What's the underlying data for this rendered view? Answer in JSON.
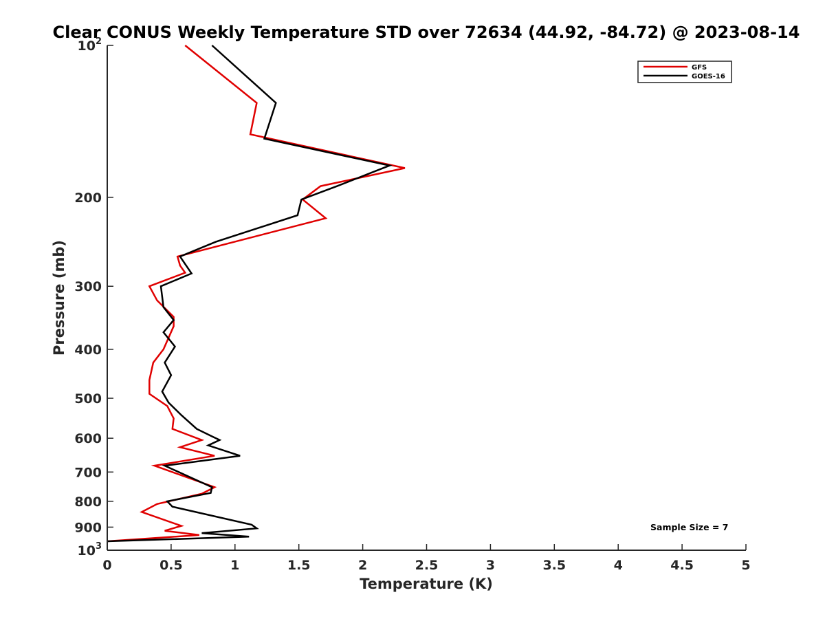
{
  "chart_data": {
    "type": "line",
    "title": "Clear CONUS Weekly Temperature STD over 72634 (44.92, -84.72) @ 2023-08-14",
    "xlabel": "Temperature (K)",
    "ylabel": "Pressure (mb)",
    "xlim": [
      0,
      5
    ],
    "ylim": [
      100,
      1000
    ],
    "y_scale": "log",
    "y_reversed": true,
    "x_ticks": [
      "0",
      "0.5",
      "1",
      "1.5",
      "2",
      "2.5",
      "3",
      "3.5",
      "4",
      "4.5",
      "5"
    ],
    "x_tick_values": [
      0,
      0.5,
      1,
      1.5,
      2,
      2.5,
      3,
      3.5,
      4,
      4.5,
      5
    ],
    "y_ticks": [
      {
        "value": 100,
        "base": "10",
        "exp": "2"
      },
      {
        "value": 200,
        "label": "200"
      },
      {
        "value": 300,
        "label": "300"
      },
      {
        "value": 400,
        "label": "400"
      },
      {
        "value": 500,
        "label": "500"
      },
      {
        "value": 600,
        "label": "600"
      },
      {
        "value": 700,
        "label": "700"
      },
      {
        "value": 800,
        "label": "800"
      },
      {
        "value": 900,
        "label": "900"
      },
      {
        "value": 1000,
        "base": "10",
        "exp": "3"
      }
    ],
    "legend_position": "top-right",
    "annotation": "Sample Size = 7",
    "series": [
      {
        "name": "GFS",
        "color": "#e00000",
        "x": [
          0.61,
          1.17,
          1.12,
          2.33,
          1.67,
          1.53,
          1.71,
          0.55,
          0.57,
          0.61,
          0.33,
          0.39,
          0.52,
          0.52,
          0.44,
          0.36,
          0.33,
          0.33,
          0.47,
          0.52,
          0.51,
          0.74,
          0.57,
          0.84,
          0.37,
          0.84,
          0.74,
          0.39,
          0.27,
          0.58,
          0.45,
          0.72,
          0.0
        ],
        "y": [
          100,
          130,
          150,
          175,
          190,
          202,
          220,
          262,
          273,
          282,
          300,
          320,
          345,
          360,
          400,
          425,
          460,
          490,
          518,
          548,
          575,
          605,
          625,
          650,
          680,
          750,
          773,
          810,
          840,
          895,
          915,
          933,
          960
        ]
      },
      {
        "name": "GOES-16",
        "color": "#000000",
        "x": [
          0.82,
          1.32,
          1.23,
          2.21,
          1.8,
          1.52,
          1.49,
          0.85,
          0.57,
          0.66,
          0.42,
          0.44,
          0.52,
          0.44,
          0.53,
          0.45,
          0.5,
          0.43,
          0.48,
          0.58,
          0.7,
          0.82,
          0.88,
          0.79,
          1.04,
          0.45,
          0.82,
          0.81,
          0.47,
          0.51,
          1.13,
          1.17,
          0.74,
          1.11,
          0.0
        ],
        "y": [
          100,
          130,
          153,
          173,
          190,
          202,
          217,
          245,
          262,
          283,
          300,
          330,
          350,
          370,
          395,
          425,
          450,
          485,
          510,
          540,
          575,
          595,
          605,
          620,
          650,
          680,
          750,
          770,
          800,
          820,
          890,
          905,
          925,
          940,
          960
        ]
      }
    ]
  }
}
